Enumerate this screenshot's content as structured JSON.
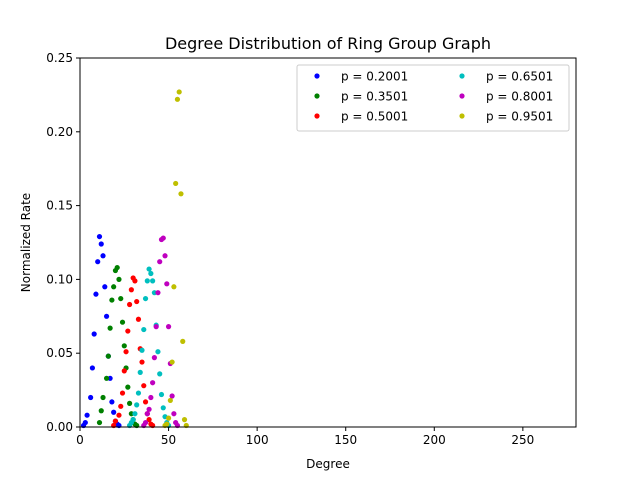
{
  "chart_data": {
    "type": "scatter",
    "title": "Degree Distribution of Ring Group Graph",
    "xlabel": "Degree",
    "ylabel": "Normalized Rate",
    "xlim": [
      0,
      280
    ],
    "ylim": [
      0,
      0.25
    ],
    "x_ticks": [
      0,
      50,
      100,
      150,
      200,
      250
    ],
    "y_ticks": [
      0.0,
      0.05,
      0.1,
      0.15,
      0.2,
      0.25
    ],
    "x_tick_labels": [
      "0",
      "50",
      "100",
      "150",
      "200",
      "250"
    ],
    "y_tick_labels": [
      "0.00",
      "0.05",
      "0.10",
      "0.15",
      "0.20",
      "0.25"
    ],
    "grid": false,
    "legend_position": "top-right",
    "series": [
      {
        "name": "p = 0.2001",
        "color": "#0000ff",
        "points": [
          [
            2,
            0.001
          ],
          [
            3,
            0.003
          ],
          [
            4,
            0.008
          ],
          [
            6,
            0.02
          ],
          [
            7,
            0.04
          ],
          [
            8,
            0.063
          ],
          [
            9,
            0.09
          ],
          [
            10,
            0.112
          ],
          [
            11,
            0.129
          ],
          [
            12,
            0.124
          ],
          [
            13,
            0.116
          ],
          [
            14,
            0.095
          ],
          [
            15,
            0.075
          ],
          [
            16,
            0.048
          ],
          [
            17,
            0.033
          ],
          [
            18,
            0.017
          ],
          [
            19,
            0.01
          ],
          [
            20,
            0.004
          ],
          [
            21,
            0.002
          ],
          [
            22,
            0.001
          ]
        ]
      },
      {
        "name": "p = 0.3501",
        "color": "#008000",
        "points": [
          [
            11,
            0.003
          ],
          [
            12,
            0.011
          ],
          [
            13,
            0.02
          ],
          [
            15,
            0.033
          ],
          [
            16,
            0.048
          ],
          [
            17,
            0.067
          ],
          [
            18,
            0.086
          ],
          [
            19,
            0.095
          ],
          [
            20,
            0.106
          ],
          [
            21,
            0.108
          ],
          [
            22,
            0.1
          ],
          [
            23,
            0.087
          ],
          [
            24,
            0.071
          ],
          [
            25,
            0.055
          ],
          [
            26,
            0.04
          ],
          [
            27,
            0.027
          ],
          [
            28,
            0.016
          ],
          [
            29,
            0.009
          ],
          [
            30,
            0.005
          ],
          [
            31,
            0.002
          ],
          [
            32,
            0.001
          ]
        ]
      },
      {
        "name": "p = 0.5001",
        "color": "#ff0000",
        "points": [
          [
            19,
            0.001
          ],
          [
            20,
            0.004
          ],
          [
            22,
            0.008
          ],
          [
            23,
            0.014
          ],
          [
            24,
            0.023
          ],
          [
            25,
            0.038
          ],
          [
            26,
            0.051
          ],
          [
            27,
            0.065
          ],
          [
            28,
            0.083
          ],
          [
            29,
            0.093
          ],
          [
            30,
            0.101
          ],
          [
            31,
            0.099
          ],
          [
            32,
            0.085
          ],
          [
            33,
            0.073
          ],
          [
            34,
            0.053
          ],
          [
            35,
            0.044
          ],
          [
            36,
            0.028
          ],
          [
            37,
            0.017
          ],
          [
            38,
            0.009
          ],
          [
            39,
            0.005
          ],
          [
            40,
            0.002
          ],
          [
            41,
            0.001
          ]
        ]
      },
      {
        "name": "p = 0.6501",
        "color": "#00bfbf",
        "points": [
          [
            28,
            0.001
          ],
          [
            29,
            0.003
          ],
          [
            30,
            0.005
          ],
          [
            31,
            0.009
          ],
          [
            32,
            0.015
          ],
          [
            33,
            0.023
          ],
          [
            34,
            0.037
          ],
          [
            35,
            0.052
          ],
          [
            36,
            0.066
          ],
          [
            37,
            0.087
          ],
          [
            38,
            0.099
          ],
          [
            39,
            0.107
          ],
          [
            40,
            0.104
          ],
          [
            41,
            0.099
          ],
          [
            42,
            0.091
          ],
          [
            43,
            0.069
          ],
          [
            44,
            0.051
          ],
          [
            45,
            0.036
          ],
          [
            46,
            0.022
          ],
          [
            47,
            0.013
          ],
          [
            48,
            0.007
          ],
          [
            49,
            0.003
          ],
          [
            50,
            0.001
          ]
        ]
      },
      {
        "name": "p = 0.8001",
        "color": "#bf00bf",
        "points": [
          [
            36,
            0.001
          ],
          [
            37,
            0.003
          ],
          [
            38,
            0.009
          ],
          [
            39,
            0.012
          ],
          [
            40,
            0.02
          ],
          [
            41,
            0.03
          ],
          [
            42,
            0.047
          ],
          [
            43,
            0.068
          ],
          [
            44,
            0.091
          ],
          [
            45,
            0.112
          ],
          [
            46,
            0.127
          ],
          [
            47,
            0.128
          ],
          [
            48,
            0.116
          ],
          [
            49,
            0.097
          ],
          [
            50,
            0.068
          ],
          [
            51,
            0.043
          ],
          [
            52,
            0.021
          ],
          [
            53,
            0.009
          ],
          [
            54,
            0.003
          ],
          [
            55,
            0.001
          ]
        ]
      },
      {
        "name": "p = 0.9501",
        "color": "#bfbf00",
        "points": [
          [
            48,
            0.001
          ],
          [
            49,
            0.002
          ],
          [
            50,
            0.006
          ],
          [
            51,
            0.018
          ],
          [
            52,
            0.044
          ],
          [
            53,
            0.095
          ],
          [
            54,
            0.165
          ],
          [
            55,
            0.222
          ],
          [
            56,
            0.227
          ],
          [
            57,
            0.158
          ],
          [
            58,
            0.058
          ],
          [
            59,
            0.005
          ],
          [
            60,
            0.001
          ]
        ]
      }
    ]
  }
}
